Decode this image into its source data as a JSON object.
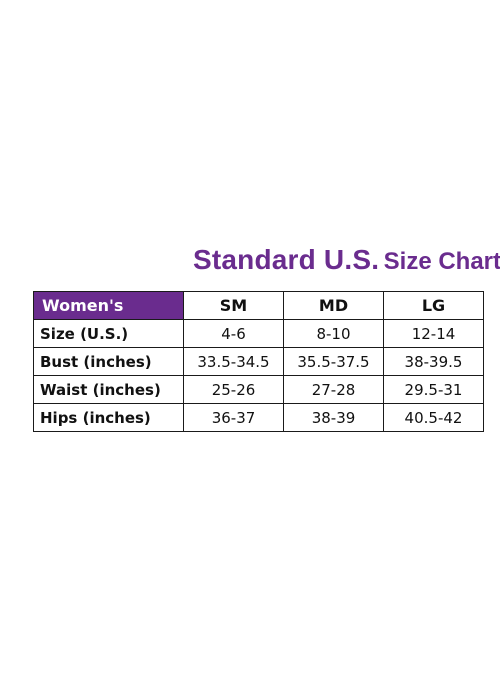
{
  "title": {
    "main": "Standard U.S.",
    "sub": "Size Chart"
  },
  "colors": {
    "brand_purple": "#6a2c8e",
    "border": "#1a1a1a",
    "text": "#111111",
    "background": "#ffffff"
  },
  "table": {
    "corner_label": "Women's",
    "columns": [
      "SM",
      "MD",
      "LG"
    ],
    "rows": [
      {
        "label": "Size (U.S.)",
        "values": [
          "4-6",
          "8-10",
          "12-14"
        ]
      },
      {
        "label": "Bust (inches)",
        "values": [
          "33.5-34.5",
          "35.5-37.5",
          "38-39.5"
        ]
      },
      {
        "label": "Waist (inches)",
        "values": [
          "25-26",
          "27-28",
          "29.5-31"
        ]
      },
      {
        "label": "Hips (inches)",
        "values": [
          "36-37",
          "38-39",
          "40.5-42"
        ]
      }
    ]
  }
}
